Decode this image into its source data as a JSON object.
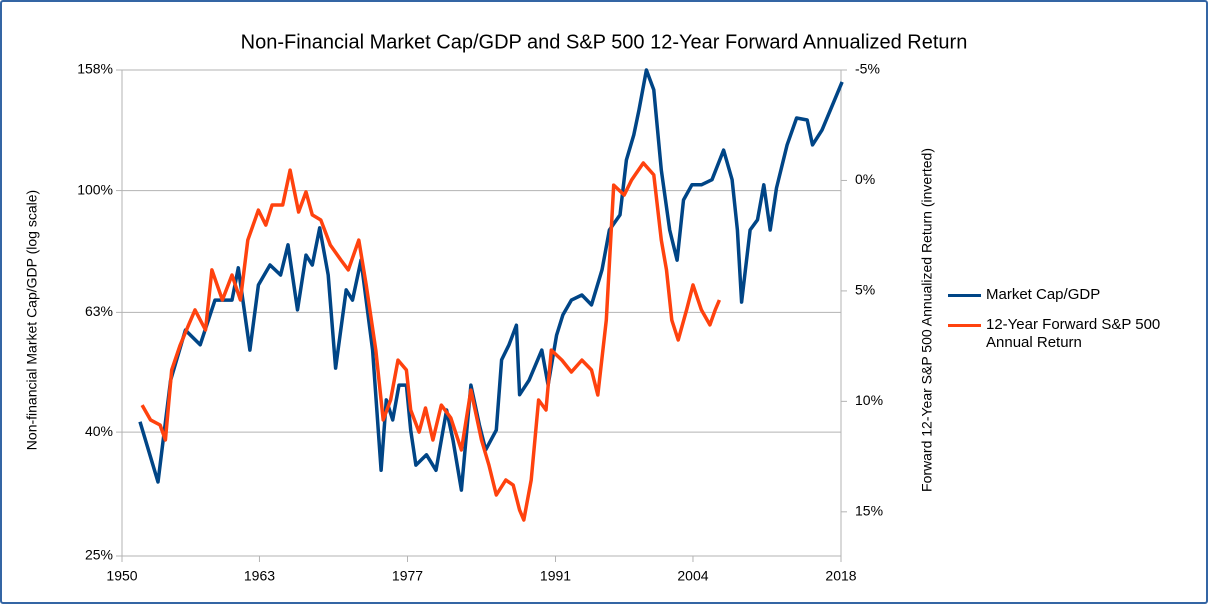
{
  "chart_data": {
    "type": "line",
    "title": "Non-Financial Market Cap/GDP and S&P 500 12-Year Forward Annualized Return",
    "y_label": "Non-financial Market Cap/GDP (log scale)",
    "y2_label": "Forward 12-Year S&P 500 Annualized Return (inverted)",
    "xlim": [
      1950,
      2018
    ],
    "xticks": [
      1950,
      1963,
      1977,
      1991,
      2004,
      2018
    ],
    "ylim": [
      25,
      158
    ],
    "ylog": true,
    "yticks": [
      {
        "value": 25,
        "label": "25%"
      },
      {
        "value": 40,
        "label": "40%"
      },
      {
        "value": 63,
        "label": "63%"
      },
      {
        "value": 100,
        "label": "100%"
      },
      {
        "value": 158,
        "label": "158%"
      }
    ],
    "y2lim": [
      -5,
      17
    ],
    "y2_inverted": true,
    "y2ticks": [
      {
        "value": -5,
        "label": "-5%"
      },
      {
        "value": 0,
        "label": "0%"
      },
      {
        "value": 5,
        "label": "5%"
      },
      {
        "value": 10,
        "label": "10%"
      },
      {
        "value": 15,
        "label": "15%"
      }
    ],
    "grid": true,
    "legend": "right",
    "series": [
      {
        "name": "Market Cap/GDP",
        "color": "#004586",
        "x": [
          1951.7,
          1953.4,
          1954.6,
          1956,
          1957.4,
          1958.8,
          1960.4,
          1961,
          1962.1,
          1962.9,
          1964,
          1965,
          1965.7,
          1966.6,
          1967.4,
          1968,
          1968.7,
          1969.5,
          1970.2,
          1971.2,
          1971.8,
          1972.6,
          1973.7,
          1974.5,
          1975,
          1975.6,
          1976.2,
          1976.9,
          1977.3,
          1977.8,
          1978.8,
          1979.7,
          1980.7,
          1981.3,
          1982.1,
          1983,
          1983.8,
          1984.4,
          1985.4,
          1985.9,
          1986.6,
          1987.3,
          1987.6,
          1988.5,
          1989.7,
          1990.3,
          1991.1,
          1991.7,
          1992.5,
          1993.5,
          1994.4,
          1995.4,
          1996.1,
          1997.1,
          1997.7,
          1998.4,
          1998.9,
          1999.6,
          2000.3,
          2001,
          2001.8,
          2002.5,
          2003.1,
          2003.9,
          2004.8,
          2005.8,
          2006.9,
          2007.7,
          2008.2,
          2008.6,
          2009.4,
          2010.1,
          2010.7,
          2011.3,
          2011.9,
          2012.9,
          2013.8,
          2014.8,
          2015.3,
          2016.2,
          2017.2,
          2018.1
        ],
        "values": [
          41.6,
          33.1,
          48.7,
          58.9,
          55.7,
          66.0,
          66.0,
          74.6,
          54.6,
          69.9,
          75.4,
          72.6,
          81.4,
          63.6,
          78.3,
          75.4,
          86.8,
          72.6,
          51.0,
          68.6,
          66.0,
          76.8,
          54.6,
          34.6,
          45.2,
          41.9,
          47.8,
          47.8,
          40.3,
          35.3,
          36.7,
          34.6,
          43.5,
          38.8,
          32.1,
          47.8,
          41.1,
          37.4,
          40.3,
          52.6,
          55.7,
          60.0,
          46.1,
          48.7,
          54.6,
          47.8,
          57.8,
          62.4,
          66.0,
          67.3,
          64.8,
          74.0,
          86.1,
          91.2,
          112.3,
          123.5,
          135.8,
          158,
          146.5,
          108.1,
          86.1,
          76.8,
          96.5,
          102.2,
          102.2,
          104.2,
          116.6,
          104.2,
          86.1,
          65.5,
          86.1,
          89.5,
          102.2,
          86.1,
          101.0,
          118.9,
          131.7,
          130.7,
          118.9,
          125.8,
          138.4,
          151.0
        ]
      },
      {
        "name": "12-Year Forward S&P 500 Annual Return",
        "color": "#ff420e",
        "axis": "y2",
        "x": [
          1951.9,
          1952.7,
          1953.6,
          1954.1,
          1954.7,
          1955.5,
          1956.3,
          1956.9,
          1957.9,
          1958.5,
          1959.5,
          1960.4,
          1961.2,
          1961.9,
          1962.9,
          1963.6,
          1964.2,
          1965.2,
          1965.9,
          1966.7,
          1967.4,
          1968,
          1968.8,
          1969.7,
          1970.7,
          1971.4,
          1972.4,
          1973.1,
          1974,
          1974.7,
          1975.4,
          1976.1,
          1976.9,
          1977.3,
          1978.1,
          1978.7,
          1979.4,
          1980.2,
          1981.1,
          1982.1,
          1983,
          1984,
          1984.7,
          1985.4,
          1986.3,
          1987,
          1987.6,
          1988,
          1988.7,
          1989.4,
          1990.1,
          1990.6,
          1991.6,
          1992.5,
          1993.5,
          1994.4,
          1995,
          1995.8,
          1996.5,
          1997.5,
          1998.2,
          1999.3,
          2000.3,
          2001,
          2001.5,
          2002,
          2002.6,
          2003.4,
          2004,
          2004.8,
          2005.6,
          2006.1,
          2006.5
        ],
        "values": [
          10.17,
          10.84,
          11.07,
          11.75,
          8.58,
          7.45,
          6.54,
          5.86,
          6.77,
          4.05,
          5.41,
          4.28,
          5.41,
          2.7,
          1.34,
          2.02,
          1.11,
          1.11,
          -0.47,
          1.43,
          0.52,
          1.56,
          1.79,
          2.92,
          3.6,
          4.05,
          2.7,
          4.73,
          7.68,
          10.84,
          9.94,
          8.13,
          8.58,
          10.39,
          11.39,
          10.3,
          11.75,
          10.17,
          10.75,
          12.2,
          9.49,
          11.75,
          12.88,
          14.24,
          13.56,
          13.79,
          14.92,
          15.37,
          13.56,
          9.94,
          10.39,
          7.68,
          8.13,
          8.67,
          8.13,
          8.58,
          9.71,
          6.32,
          0.21,
          0.66,
          -0.02,
          -0.79,
          -0.25,
          2.7,
          4.05,
          6.32,
          7.22,
          5.86,
          4.73,
          5.86,
          6.54,
          5.86,
          5.41
        ]
      }
    ]
  }
}
